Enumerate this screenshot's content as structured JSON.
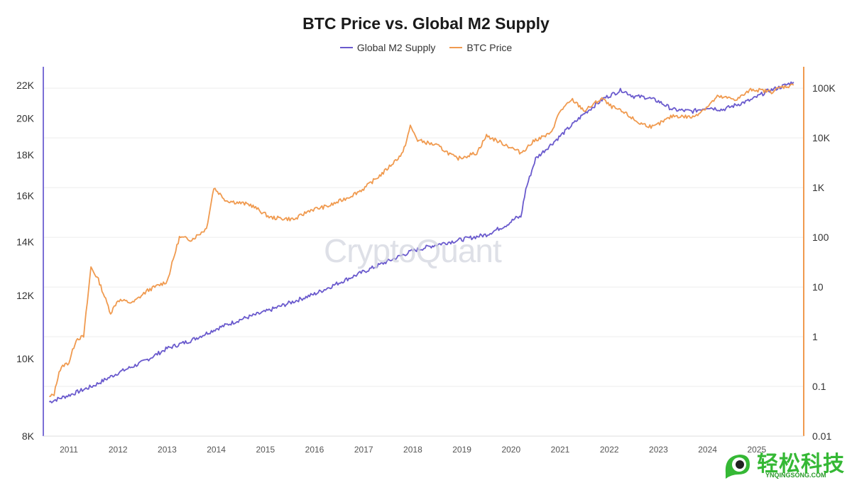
{
  "chart_data": {
    "type": "line",
    "title": "BTC Price vs. Global M2 Supply",
    "x_ticks": [
      "2011",
      "2012",
      "2013",
      "2014",
      "2015",
      "2016",
      "2017",
      "2018",
      "2019",
      "2020",
      "2021",
      "2022",
      "2023",
      "2024",
      "2025"
    ],
    "left_axis": {
      "scale": "log",
      "ylim": [
        8000,
        23200
      ],
      "ticks": [
        {
          "value": 8000,
          "label": "8K"
        },
        {
          "value": 10000,
          "label": "10K"
        },
        {
          "value": 12000,
          "label": "12K"
        },
        {
          "value": 14000,
          "label": "14K"
        },
        {
          "value": 16000,
          "label": "16K"
        },
        {
          "value": 18000,
          "label": "18K"
        },
        {
          "value": 20000,
          "label": "20K"
        },
        {
          "value": 22000,
          "label": "22K"
        }
      ]
    },
    "right_axis": {
      "scale": "log",
      "ylim": [
        0.01,
        270000
      ],
      "ticks": [
        {
          "value": 0.01,
          "label": "0.01"
        },
        {
          "value": 0.1,
          "label": "0.1"
        },
        {
          "value": 1,
          "label": "1"
        },
        {
          "value": 10,
          "label": "10"
        },
        {
          "value": 100,
          "label": "100"
        },
        {
          "value": 1000,
          "label": "1K"
        },
        {
          "value": 10000,
          "label": "10K"
        },
        {
          "value": 100000,
          "label": "100K"
        }
      ]
    },
    "grid": "horizontal",
    "legend_position": "top-center",
    "series": [
      {
        "name": "Global M2 Supply",
        "axis": "left",
        "color": "#6a5acd",
        "points": [
          [
            2010.6,
            8830
          ],
          [
            2011.0,
            9000
          ],
          [
            2011.5,
            9250
          ],
          [
            2012.0,
            9600
          ],
          [
            2012.5,
            9900
          ],
          [
            2013.0,
            10300
          ],
          [
            2013.5,
            10550
          ],
          [
            2014.0,
            10900
          ],
          [
            2014.5,
            11200
          ],
          [
            2015.0,
            11450
          ],
          [
            2015.5,
            11750
          ],
          [
            2016.0,
            12050
          ],
          [
            2016.5,
            12450
          ],
          [
            2017.0,
            12850
          ],
          [
            2017.5,
            13250
          ],
          [
            2018.0,
            13650
          ],
          [
            2018.5,
            13900
          ],
          [
            2019.0,
            14100
          ],
          [
            2019.5,
            14300
          ],
          [
            2019.9,
            14700
          ],
          [
            2020.1,
            15000
          ],
          [
            2020.2,
            15050
          ],
          [
            2020.3,
            16300
          ],
          [
            2020.5,
            17800
          ],
          [
            2021.0,
            19000
          ],
          [
            2021.5,
            20300
          ],
          [
            2021.9,
            21200
          ],
          [
            2022.25,
            21700
          ],
          [
            2022.5,
            21300
          ],
          [
            2022.75,
            21250
          ],
          [
            2023.0,
            21000
          ],
          [
            2023.3,
            20500
          ],
          [
            2023.7,
            20400
          ],
          [
            2024.0,
            20650
          ],
          [
            2024.3,
            20500
          ],
          [
            2024.6,
            20800
          ],
          [
            2024.9,
            21100
          ],
          [
            2025.2,
            21600
          ],
          [
            2025.5,
            21900
          ],
          [
            2025.75,
            22200
          ]
        ]
      },
      {
        "name": "BTC Price",
        "axis": "right",
        "color": "#f09a4f",
        "points": [
          [
            2010.6,
            0.06
          ],
          [
            2010.7,
            0.07
          ],
          [
            2010.8,
            0.2
          ],
          [
            2010.9,
            0.27
          ],
          [
            2011.0,
            0.3
          ],
          [
            2011.15,
            0.9
          ],
          [
            2011.3,
            1.0
          ],
          [
            2011.45,
            25
          ],
          [
            2011.6,
            14
          ],
          [
            2011.85,
            3.0
          ],
          [
            2012.0,
            5.5
          ],
          [
            2012.3,
            4.8
          ],
          [
            2012.6,
            8.5
          ],
          [
            2013.0,
            13
          ],
          [
            2013.25,
            100
          ],
          [
            2013.5,
            90
          ],
          [
            2013.8,
            150
          ],
          [
            2013.95,
            1000
          ],
          [
            2014.2,
            550
          ],
          [
            2014.7,
            450
          ],
          [
            2015.1,
            250
          ],
          [
            2015.6,
            230
          ],
          [
            2015.9,
            350
          ],
          [
            2016.3,
            430
          ],
          [
            2016.7,
            650
          ],
          [
            2017.0,
            950
          ],
          [
            2017.4,
            2000
          ],
          [
            2017.8,
            5000
          ],
          [
            2017.95,
            17000
          ],
          [
            2018.1,
            9000
          ],
          [
            2018.5,
            7000
          ],
          [
            2018.9,
            3800
          ],
          [
            2019.3,
            5000
          ],
          [
            2019.5,
            11000
          ],
          [
            2019.9,
            7200
          ],
          [
            2020.2,
            5000
          ],
          [
            2020.5,
            9200
          ],
          [
            2020.8,
            12000
          ],
          [
            2021.0,
            35000
          ],
          [
            2021.25,
            58000
          ],
          [
            2021.5,
            35000
          ],
          [
            2021.85,
            63000
          ],
          [
            2022.0,
            45000
          ],
          [
            2022.35,
            30000
          ],
          [
            2022.6,
            20000
          ],
          [
            2022.9,
            16500
          ],
          [
            2023.3,
            28000
          ],
          [
            2023.7,
            26000
          ],
          [
            2024.0,
            43000
          ],
          [
            2024.2,
            67000
          ],
          [
            2024.6,
            60000
          ],
          [
            2024.9,
            95000
          ],
          [
            2025.3,
            85000
          ],
          [
            2025.5,
            105000
          ],
          [
            2025.75,
            115000
          ]
        ]
      }
    ]
  },
  "legend": {
    "m2_label": "Global M2 Supply",
    "btc_label": "BTC Price",
    "m2_color": "#6a5acd",
    "btc_color": "#f09a4f"
  },
  "watermark": "CryptoQuant",
  "logo": {
    "cn_text": "轻松科技",
    "en_text": "YNQINGSONG.COM"
  }
}
